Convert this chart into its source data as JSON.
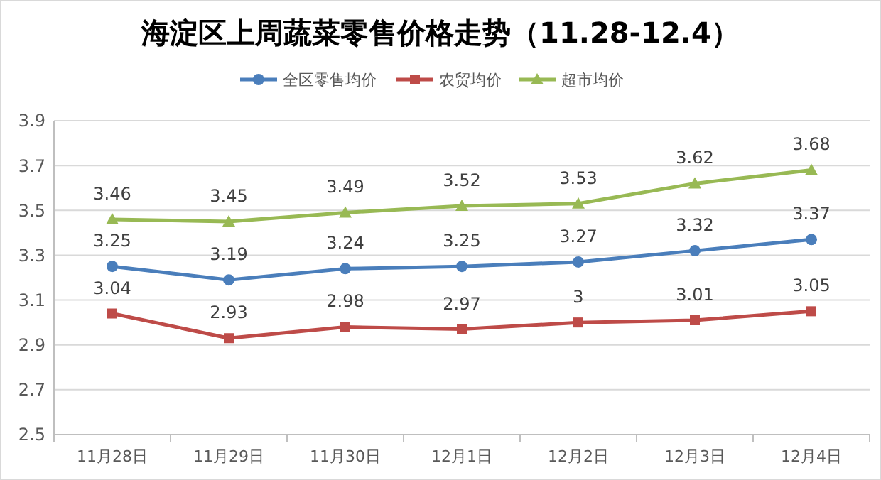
{
  "chart_data": {
    "type": "line",
    "title": "海淀区上周蔬菜零售价格走势（11.28-12.4）",
    "categories": [
      "11月28日",
      "11月29日",
      "11月30日",
      "12月1日",
      "12月2日",
      "12月3日",
      "12月4日"
    ],
    "series": [
      {
        "name": "全区零售均价",
        "color": "#4a7ebb",
        "marker": "circle",
        "values": [
          3.25,
          3.19,
          3.24,
          3.25,
          3.27,
          3.32,
          3.37
        ]
      },
      {
        "name": "农贸均价",
        "color": "#be4b48",
        "marker": "square",
        "values": [
          3.04,
          2.93,
          2.98,
          2.97,
          3,
          3.01,
          3.05
        ]
      },
      {
        "name": "超市均价",
        "color": "#98b954",
        "marker": "triangle",
        "values": [
          3.46,
          3.45,
          3.49,
          3.52,
          3.53,
          3.62,
          3.68
        ]
      }
    ],
    "ylim": [
      2.5,
      3.9
    ],
    "yticks": [
      2.5,
      2.7,
      2.9,
      3.1,
      3.3,
      3.5,
      3.7,
      3.9
    ],
    "grid": "y",
    "legend": "top",
    "data_labels": true,
    "line_style": "solid"
  }
}
